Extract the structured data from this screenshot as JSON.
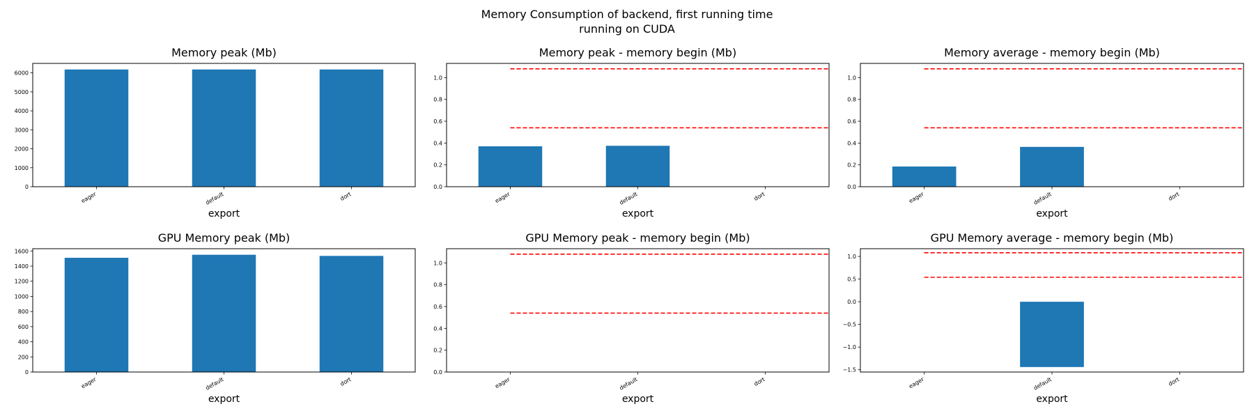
{
  "suptitle": [
    "Memory Consumption of backend, first running time",
    "running on CUDA"
  ],
  "colors": {
    "bar": "#1f77b4",
    "refline": "#ff0000",
    "axis": "#000000"
  },
  "chart_data": [
    {
      "type": "bar",
      "title": "Memory peak (Mb)",
      "xlabel": "export",
      "categories": [
        "eager",
        "default",
        "dort"
      ],
      "values": [
        6180,
        6180,
        6180
      ],
      "ylim": [
        0,
        6500
      ],
      "yticks": [
        0,
        1000,
        2000,
        3000,
        4000,
        5000,
        6000
      ],
      "ytick_labels": [
        "0",
        "1000",
        "2000",
        "3000",
        "4000",
        "5000",
        "6000"
      ],
      "hlines": []
    },
    {
      "type": "bar",
      "title": "Memory peak - memory begin (Mb)",
      "xlabel": "export",
      "categories": [
        "eager",
        "default",
        "dort"
      ],
      "values": [
        0.37,
        0.375,
        0
      ],
      "ylim": [
        0,
        1.13
      ],
      "yticks": [
        0.0,
        0.2,
        0.4,
        0.6,
        0.8,
        1.0
      ],
      "ytick_labels": [
        "0.0",
        "0.2",
        "0.4",
        "0.6",
        "0.8",
        "1.0"
      ],
      "hlines": [
        1.08,
        0.54
      ]
    },
    {
      "type": "bar",
      "title": "Memory average - memory begin (Mb)",
      "xlabel": "export",
      "categories": [
        "eager",
        "default",
        "dort"
      ],
      "values": [
        0.185,
        0.365,
        0
      ],
      "ylim": [
        0,
        1.13
      ],
      "yticks": [
        0.0,
        0.2,
        0.4,
        0.6,
        0.8,
        1.0
      ],
      "ytick_labels": [
        "0.0",
        "0.2",
        "0.4",
        "0.6",
        "0.8",
        "1.0"
      ],
      "hlines": [
        1.08,
        0.54
      ]
    },
    {
      "type": "bar",
      "title": "GPU Memory peak (Mb)",
      "xlabel": "export",
      "categories": [
        "eager",
        "default",
        "dort"
      ],
      "values": [
        1510,
        1550,
        1535
      ],
      "ylim": [
        0,
        1630
      ],
      "yticks": [
        0,
        200,
        400,
        600,
        800,
        1000,
        1200,
        1400,
        1600
      ],
      "ytick_labels": [
        "0",
        "200",
        "400",
        "600",
        "800",
        "1000",
        "1200",
        "1400",
        "1600"
      ],
      "hlines": []
    },
    {
      "type": "bar",
      "title": "GPU Memory peak - memory begin (Mb)",
      "xlabel": "export",
      "categories": [
        "eager",
        "default",
        "dort"
      ],
      "values": [
        0,
        0,
        0
      ],
      "ylim": [
        0,
        1.13
      ],
      "yticks": [
        0.0,
        0.2,
        0.4,
        0.6,
        0.8,
        1.0
      ],
      "ytick_labels": [
        "0.0",
        "0.2",
        "0.4",
        "0.6",
        "0.8",
        "1.0"
      ],
      "hlines": [
        1.08,
        0.54
      ]
    },
    {
      "type": "bar",
      "title": "GPU Memory average - memory begin (Mb)",
      "xlabel": "export",
      "categories": [
        "eager",
        "default",
        "dort"
      ],
      "values": [
        0,
        -1.44,
        0
      ],
      "ylim": [
        -1.55,
        1.17
      ],
      "yticks": [
        -1.5,
        -1.0,
        -0.5,
        0.0,
        0.5,
        1.0
      ],
      "ytick_labels": [
        "−1.5",
        "−1.0",
        "−0.5",
        "0.0",
        "0.5",
        "1.0"
      ],
      "hlines": [
        1.08,
        0.54
      ]
    }
  ]
}
